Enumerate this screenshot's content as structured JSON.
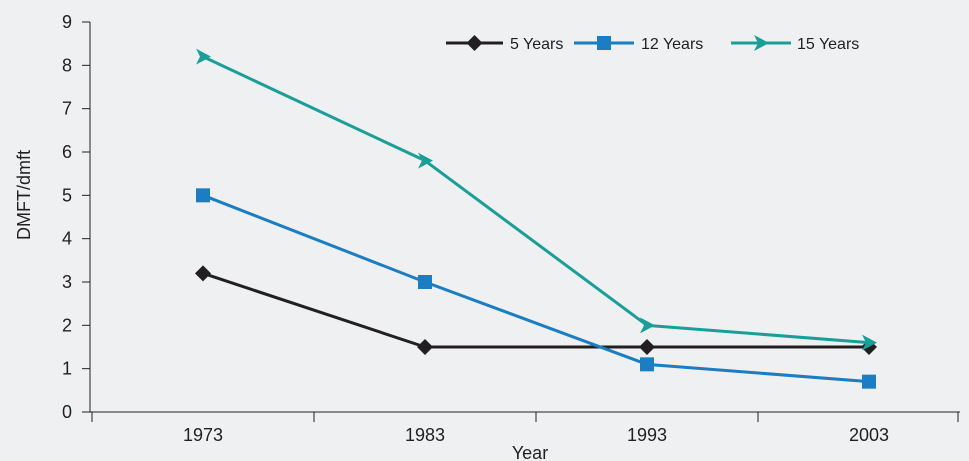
{
  "chart_data": {
    "type": "line",
    "title": "",
    "xlabel": "Year",
    "ylabel": "DMFT/dmft",
    "categories": [
      "1973",
      "1983",
      "1993",
      "2003"
    ],
    "ylim": [
      0,
      9
    ],
    "yticks": [
      "0",
      "1",
      "2",
      "3",
      "4",
      "5",
      "6",
      "7",
      "8",
      "9"
    ],
    "grid": false,
    "legend_position": "top-right",
    "series": [
      {
        "name": "5 Years",
        "values": [
          3.2,
          1.5,
          1.5,
          1.5
        ],
        "color": "#231f20",
        "marker": "diamond"
      },
      {
        "name": "12 Years",
        "values": [
          5.0,
          3.0,
          1.1,
          0.7
        ],
        "color": "#1b7dc2",
        "marker": "square"
      },
      {
        "name": "15 Years",
        "values": [
          8.2,
          5.8,
          2.0,
          1.6
        ],
        "color": "#1a9e98",
        "marker": "triangle-right"
      }
    ]
  }
}
